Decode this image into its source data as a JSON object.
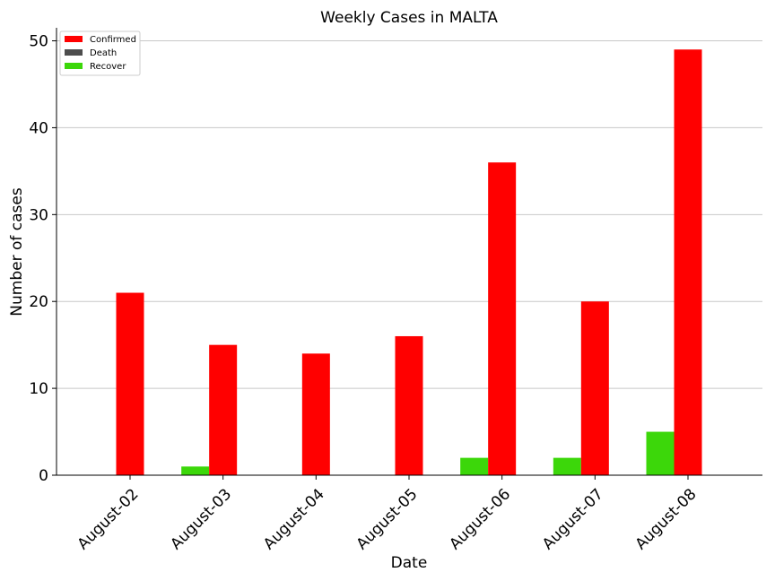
{
  "chart_data": {
    "type": "bar",
    "title": "Weekly Cases in MALTA",
    "xlabel": "Date",
    "ylabel": "Number of cases",
    "ylim": [
      0,
      51.5
    ],
    "yticks": [
      0,
      10,
      20,
      30,
      40,
      50
    ],
    "grid": "horizontal",
    "legend_position": "top-left",
    "categories": [
      "August-02",
      "August-03",
      "August-04",
      "August-05",
      "August-06",
      "August-07",
      "August-08"
    ],
    "series": [
      {
        "name": "Confirmed",
        "color": "#ff0000",
        "values": [
          21,
          15,
          14,
          16,
          36,
          20,
          49
        ]
      },
      {
        "name": "Death",
        "color": "#4d4d4d",
        "values": [
          0,
          0,
          0,
          0,
          0,
          0,
          0
        ]
      },
      {
        "name": "Recover",
        "color": "#3cd70a",
        "values": [
          0,
          1,
          0,
          0,
          2,
          2,
          5
        ]
      }
    ]
  }
}
